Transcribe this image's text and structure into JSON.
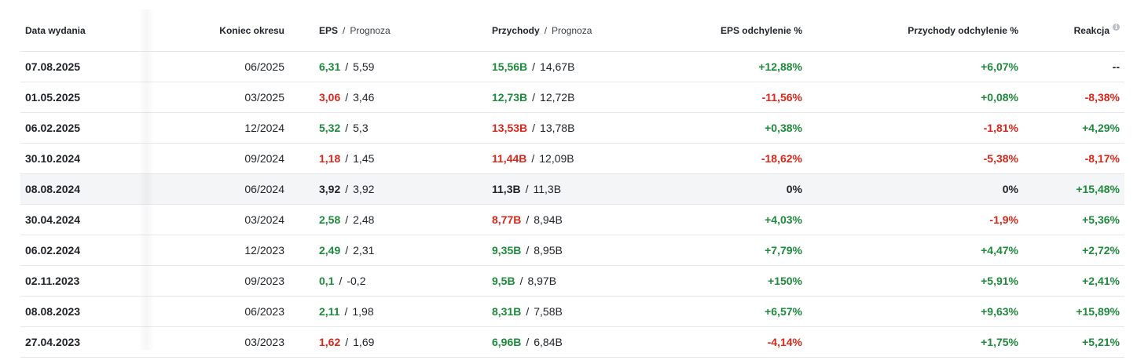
{
  "colors": {
    "positive": "#1e8a3c",
    "negative": "#d9281b",
    "neutral": "#1f2328"
  },
  "headers": {
    "date": "Data wydania",
    "period": "Koniec okresu",
    "eps": "EPS",
    "eps_forecast": "Prognoza",
    "revenue": "Przychody",
    "revenue_forecast": "Prognoza",
    "eps_dev": "EPS odchylenie %",
    "rev_dev": "Przychody odchylenie %",
    "reaction": "Reakcja",
    "reaction_icon": "info-icon",
    "separator": "/"
  },
  "rows": [
    {
      "date": "07.08.2025",
      "period": "06/2025",
      "eps": "6,31",
      "eps_s": "pos",
      "eps_fc": "5,59",
      "rev": "15,56B",
      "rev_s": "pos",
      "rev_fc": "14,67B",
      "eps_dev": "+12,88%",
      "eps_dev_s": "pos",
      "rev_dev": "+6,07%",
      "rev_dev_s": "pos",
      "react": "--",
      "react_s": "neu"
    },
    {
      "date": "01.05.2025",
      "period": "03/2025",
      "eps": "3,06",
      "eps_s": "neg",
      "eps_fc": "3,46",
      "rev": "12,73B",
      "rev_s": "pos",
      "rev_fc": "12,72B",
      "eps_dev": "-11,56%",
      "eps_dev_s": "neg",
      "rev_dev": "+0,08%",
      "rev_dev_s": "pos",
      "react": "-8,38%",
      "react_s": "neg"
    },
    {
      "date": "06.02.2025",
      "period": "12/2024",
      "eps": "5,32",
      "eps_s": "pos",
      "eps_fc": "5,3",
      "rev": "13,53B",
      "rev_s": "neg",
      "rev_fc": "13,78B",
      "eps_dev": "+0,38%",
      "eps_dev_s": "pos",
      "rev_dev": "-1,81%",
      "rev_dev_s": "neg",
      "react": "+4,29%",
      "react_s": "pos"
    },
    {
      "date": "30.10.2024",
      "period": "09/2024",
      "eps": "1,18",
      "eps_s": "neg",
      "eps_fc": "1,45",
      "rev": "11,44B",
      "rev_s": "neg",
      "rev_fc": "12,09B",
      "eps_dev": "-18,62%",
      "eps_dev_s": "neg",
      "rev_dev": "-5,38%",
      "rev_dev_s": "neg",
      "react": "-8,17%",
      "react_s": "neg"
    },
    {
      "date": "08.08.2024",
      "period": "06/2024",
      "eps": "3,92",
      "eps_s": "neu",
      "eps_fc": "3,92",
      "rev": "11,3B",
      "rev_s": "neu",
      "rev_fc": "11,3B",
      "eps_dev": "0%",
      "eps_dev_s": "neu",
      "rev_dev": "0%",
      "rev_dev_s": "neu",
      "react": "+15,48%",
      "react_s": "pos",
      "highlight": true
    },
    {
      "date": "30.04.2024",
      "period": "03/2024",
      "eps": "2,58",
      "eps_s": "pos",
      "eps_fc": "2,48",
      "rev": "8,77B",
      "rev_s": "neg",
      "rev_fc": "8,94B",
      "eps_dev": "+4,03%",
      "eps_dev_s": "pos",
      "rev_dev": "-1,9%",
      "rev_dev_s": "neg",
      "react": "+5,36%",
      "react_s": "pos"
    },
    {
      "date": "06.02.2024",
      "period": "12/2023",
      "eps": "2,49",
      "eps_s": "pos",
      "eps_fc": "2,31",
      "rev": "9,35B",
      "rev_s": "pos",
      "rev_fc": "8,95B",
      "eps_dev": "+7,79%",
      "eps_dev_s": "pos",
      "rev_dev": "+4,47%",
      "rev_dev_s": "pos",
      "react": "+2,72%",
      "react_s": "pos"
    },
    {
      "date": "02.11.2023",
      "period": "09/2023",
      "eps": "0,1",
      "eps_s": "pos",
      "eps_fc": "-0,2",
      "rev": "9,5B",
      "rev_s": "pos",
      "rev_fc": "8,97B",
      "eps_dev": "+150%",
      "eps_dev_s": "pos",
      "rev_dev": "+5,91%",
      "rev_dev_s": "pos",
      "react": "+2,41%",
      "react_s": "pos"
    },
    {
      "date": "08.08.2023",
      "period": "06/2023",
      "eps": "2,11",
      "eps_s": "pos",
      "eps_fc": "1,98",
      "rev": "8,31B",
      "rev_s": "pos",
      "rev_fc": "7,58B",
      "eps_dev": "+6,57%",
      "eps_dev_s": "pos",
      "rev_dev": "+9,63%",
      "rev_dev_s": "pos",
      "react": "+15,89%",
      "react_s": "pos"
    },
    {
      "date": "27.04.2023",
      "period": "03/2023",
      "eps": "1,62",
      "eps_s": "neg",
      "eps_fc": "1,69",
      "rev": "6,96B",
      "rev_s": "pos",
      "rev_fc": "6,84B",
      "eps_dev": "-4,14%",
      "eps_dev_s": "neg",
      "rev_dev": "+1,75%",
      "rev_dev_s": "pos",
      "react": "+5,21%",
      "react_s": "pos"
    }
  ]
}
